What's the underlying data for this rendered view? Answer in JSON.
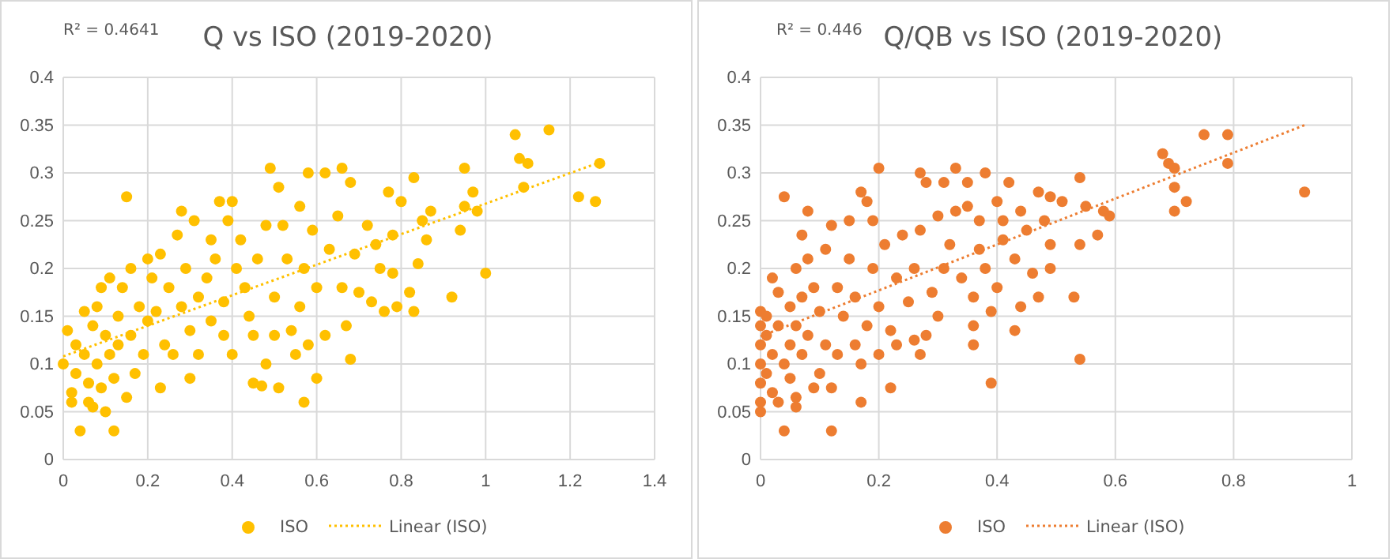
{
  "chart_data": [
    {
      "type": "scatter",
      "title": "Q vs ISO (2019-2020)",
      "annotations": [
        "R² = 0.4641"
      ],
      "xlim": [
        0,
        1.4
      ],
      "ylim": [
        0,
        0.4
      ],
      "xticks": [
        0,
        0.2,
        0.4,
        0.6,
        0.8,
        1,
        1.2,
        1.4
      ],
      "yticks": [
        0,
        0.05,
        0.1,
        0.15,
        0.2,
        0.25,
        0.3,
        0.35,
        0.4
      ],
      "grid": true,
      "legend": "bottom",
      "series": [
        {
          "name": "ISO",
          "type": "scatter",
          "marker": "circle",
          "color": "#ffc000",
          "x": [
            0,
            0.01,
            0.02,
            0.02,
            0.03,
            0.03,
            0.04,
            0.05,
            0.05,
            0.06,
            0.06,
            0.07,
            0.07,
            0.08,
            0.08,
            0.09,
            0.09,
            0.1,
            0.1,
            0.11,
            0.11,
            0.12,
            0.12,
            0.13,
            0.13,
            0.14,
            0.15,
            0.15,
            0.16,
            0.16,
            0.17,
            0.18,
            0.19,
            0.2,
            0.2,
            0.21,
            0.22,
            0.23,
            0.23,
            0.24,
            0.25,
            0.26,
            0.27,
            0.28,
            0.28,
            0.29,
            0.3,
            0.3,
            0.31,
            0.32,
            0.32,
            0.34,
            0.35,
            0.35,
            0.36,
            0.37,
            0.38,
            0.38,
            0.39,
            0.4,
            0.4,
            0.41,
            0.42,
            0.43,
            0.44,
            0.45,
            0.45,
            0.46,
            0.47,
            0.48,
            0.48,
            0.49,
            0.5,
            0.5,
            0.51,
            0.51,
            0.52,
            0.53,
            0.54,
            0.55,
            0.56,
            0.56,
            0.57,
            0.57,
            0.58,
            0.58,
            0.59,
            0.6,
            0.6,
            0.62,
            0.62,
            0.63,
            0.65,
            0.66,
            0.66,
            0.67,
            0.68,
            0.68,
            0.69,
            0.7,
            0.72,
            0.73,
            0.74,
            0.75,
            0.76,
            0.77,
            0.78,
            0.78,
            0.79,
            0.8,
            0.82,
            0.83,
            0.83,
            0.84,
            0.85,
            0.86,
            0.87,
            0.92,
            0.94,
            0.95,
            0.95,
            0.97,
            0.98,
            1.0,
            1.07,
            1.08,
            1.09,
            1.1,
            1.15,
            1.22,
            1.26,
            1.27
          ],
          "values": [
            0.1,
            0.135,
            0.07,
            0.06,
            0.12,
            0.09,
            0.03,
            0.155,
            0.11,
            0.06,
            0.08,
            0.055,
            0.14,
            0.16,
            0.1,
            0.18,
            0.075,
            0.13,
            0.05,
            0.19,
            0.11,
            0.03,
            0.085,
            0.15,
            0.12,
            0.18,
            0.275,
            0.065,
            0.2,
            0.13,
            0.09,
            0.16,
            0.11,
            0.21,
            0.145,
            0.19,
            0.155,
            0.075,
            0.215,
            0.12,
            0.18,
            0.11,
            0.235,
            0.26,
            0.16,
            0.2,
            0.135,
            0.085,
            0.25,
            0.17,
            0.11,
            0.19,
            0.23,
            0.145,
            0.21,
            0.27,
            0.165,
            0.13,
            0.25,
            0.11,
            0.27,
            0.2,
            0.23,
            0.18,
            0.15,
            0.08,
            0.13,
            0.21,
            0.077,
            0.245,
            0.1,
            0.305,
            0.17,
            0.13,
            0.285,
            0.075,
            0.245,
            0.21,
            0.135,
            0.11,
            0.265,
            0.16,
            0.06,
            0.2,
            0.3,
            0.12,
            0.24,
            0.085,
            0.18,
            0.3,
            0.13,
            0.22,
            0.255,
            0.305,
            0.18,
            0.14,
            0.105,
            0.29,
            0.215,
            0.175,
            0.245,
            0.165,
            0.225,
            0.2,
            0.155,
            0.28,
            0.235,
            0.195,
            0.16,
            0.27,
            0.175,
            0.295,
            0.155,
            0.205,
            0.25,
            0.23,
            0.26,
            0.17,
            0.24,
            0.305,
            0.265,
            0.28,
            0.26,
            0.195,
            0.34,
            0.315,
            0.285,
            0.31,
            0.345,
            0.275,
            0.27,
            0.31
          ]
        },
        {
          "name": "Linear (ISO)",
          "type": "line",
          "color": "#ffc000",
          "line_style": "dotted",
          "x": [
            0,
            1.27
          ],
          "values": [
            0.108,
            0.311
          ]
        }
      ]
    },
    {
      "type": "scatter",
      "title": "Q/QB vs ISO (2019-2020)",
      "annotations": [
        "R² = 0.446"
      ],
      "xlim": [
        0,
        1
      ],
      "ylim": [
        0,
        0.4
      ],
      "xticks": [
        0,
        0.2,
        0.4,
        0.6,
        0.8,
        1
      ],
      "yticks": [
        0,
        0.05,
        0.1,
        0.15,
        0.2,
        0.25,
        0.3,
        0.35,
        0.4
      ],
      "grid": true,
      "legend": "bottom",
      "series": [
        {
          "name": "ISO",
          "type": "scatter",
          "marker": "circle",
          "color": "#ed7d31",
          "x": [
            0,
            0,
            0,
            0,
            0,
            0,
            0,
            0.01,
            0.01,
            0.01,
            0.02,
            0.02,
            0.02,
            0.03,
            0.03,
            0.03,
            0.04,
            0.04,
            0.04,
            0.05,
            0.05,
            0.05,
            0.06,
            0.06,
            0.06,
            0.06,
            0.07,
            0.07,
            0.07,
            0.08,
            0.08,
            0.08,
            0.09,
            0.09,
            0.1,
            0.1,
            0.11,
            0.11,
            0.12,
            0.12,
            0.12,
            0.13,
            0.13,
            0.14,
            0.15,
            0.15,
            0.16,
            0.16,
            0.17,
            0.17,
            0.17,
            0.18,
            0.18,
            0.19,
            0.19,
            0.2,
            0.2,
            0.2,
            0.21,
            0.22,
            0.22,
            0.23,
            0.23,
            0.24,
            0.25,
            0.26,
            0.26,
            0.27,
            0.27,
            0.27,
            0.28,
            0.28,
            0.29,
            0.3,
            0.3,
            0.31,
            0.31,
            0.32,
            0.33,
            0.33,
            0.34,
            0.35,
            0.35,
            0.36,
            0.36,
            0.36,
            0.37,
            0.37,
            0.38,
            0.38,
            0.39,
            0.39,
            0.4,
            0.4,
            0.41,
            0.41,
            0.42,
            0.43,
            0.43,
            0.44,
            0.44,
            0.45,
            0.46,
            0.47,
            0.47,
            0.48,
            0.49,
            0.49,
            0.49,
            0.51,
            0.53,
            0.54,
            0.54,
            0.54,
            0.55,
            0.57,
            0.58,
            0.59,
            0.68,
            0.69,
            0.7,
            0.7,
            0.7,
            0.72,
            0.75,
            0.79,
            0.79,
            0.92
          ],
          "values": [
            0.05,
            0.06,
            0.08,
            0.1,
            0.12,
            0.14,
            0.155,
            0.09,
            0.13,
            0.15,
            0.11,
            0.19,
            0.07,
            0.06,
            0.14,
            0.175,
            0.1,
            0.275,
            0.03,
            0.12,
            0.16,
            0.085,
            0.055,
            0.065,
            0.2,
            0.14,
            0.235,
            0.17,
            0.11,
            0.26,
            0.13,
            0.21,
            0.075,
            0.18,
            0.09,
            0.155,
            0.22,
            0.12,
            0.03,
            0.075,
            0.245,
            0.11,
            0.18,
            0.15,
            0.25,
            0.21,
            0.12,
            0.17,
            0.1,
            0.28,
            0.06,
            0.27,
            0.14,
            0.25,
            0.2,
            0.305,
            0.16,
            0.11,
            0.225,
            0.135,
            0.075,
            0.19,
            0.12,
            0.235,
            0.165,
            0.2,
            0.125,
            0.3,
            0.24,
            0.11,
            0.29,
            0.13,
            0.175,
            0.255,
            0.15,
            0.29,
            0.2,
            0.225,
            0.305,
            0.26,
            0.19,
            0.29,
            0.265,
            0.14,
            0.12,
            0.17,
            0.25,
            0.22,
            0.3,
            0.2,
            0.155,
            0.08,
            0.27,
            0.18,
            0.25,
            0.23,
            0.29,
            0.135,
            0.21,
            0.16,
            0.26,
            0.24,
            0.195,
            0.28,
            0.17,
            0.25,
            0.2,
            0.225,
            0.275,
            0.27,
            0.17,
            0.105,
            0.295,
            0.225,
            0.265,
            0.235,
            0.26,
            0.255,
            0.32,
            0.31,
            0.26,
            0.285,
            0.305,
            0.27,
            0.34,
            0.34,
            0.31,
            0.28
          ]
        },
        {
          "name": "Linear (ISO)",
          "type": "line",
          "color": "#ed7d31",
          "line_style": "dotted",
          "x": [
            0,
            0.92
          ],
          "values": [
            0.129,
            0.35
          ]
        }
      ]
    }
  ]
}
